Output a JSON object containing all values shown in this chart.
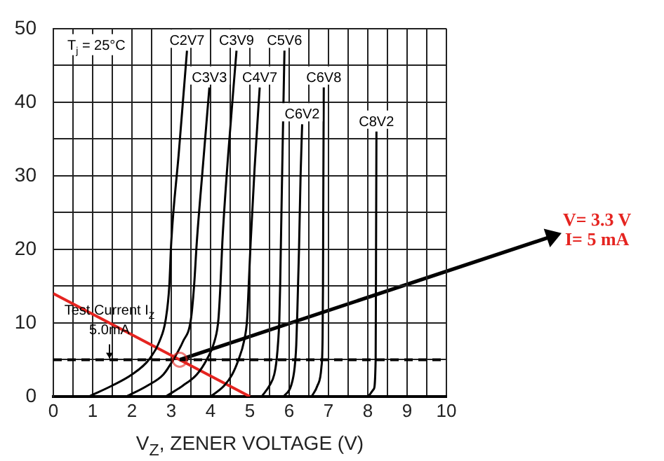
{
  "chart_data": {
    "type": "line",
    "xlabel": "V$_{Z}$, ZENER VOLTAGE (V)",
    "annotations": [
      "T$_{j}$ = 25°C",
      "V= 3.3 V\nI= 5 mA"
    ],
    "xlim": [
      0,
      10
    ],
    "xticks": [
      0,
      {
        "value": 0.5,
        "label": null
      },
      1,
      {
        "value": 1.5,
        "label": null
      },
      2,
      {
        "value": 2.5,
        "label": null
      },
      3,
      {
        "value": 3.5,
        "label": null
      },
      4,
      {
        "value": 4.5,
        "label": null
      },
      5,
      {
        "value": 5.5,
        "label": null
      },
      6,
      {
        "value": 6.5,
        "label": null
      },
      7,
      {
        "value": 7.5,
        "label": null
      },
      8,
      {
        "value": 8.5,
        "label": null
      },
      9,
      {
        "value": 9.5,
        "label": null
      },
      10
    ],
    "ylim": [
      0,
      50
    ],
    "yticks": [
      0,
      {
        "value": 5,
        "label": null
      },
      10,
      {
        "value": 15,
        "label": null
      },
      20,
      {
        "value": 25,
        "label": null
      },
      30,
      {
        "value": 35,
        "label": null
      },
      40,
      {
        "value": 45,
        "label": null
      },
      50
    ],
    "grid": true,
    "legend": false,
    "marker": "none",
    "series": [
      {
        "name": "C2V7",
        "color": "#000000",
        "x": [
          0.9,
          1.5,
          2.0,
          2.43,
          2.7,
          2.86,
          2.95,
          3.0,
          3.19,
          3.4
        ],
        "values": [
          0,
          1.5,
          3,
          5,
          7.5,
          10.5,
          15,
          21,
          33,
          47
        ]
      },
      {
        "name": "C3V3",
        "color": "#000000",
        "x": [
          1.86,
          2.4,
          2.8,
          3.05,
          3.3,
          3.5,
          3.58,
          3.65,
          3.8,
          3.97
        ],
        "values": [
          0,
          1.5,
          3,
          5,
          7.5,
          10.5,
          15,
          21,
          31,
          42
        ]
      },
      {
        "name": "C3V9",
        "color": "#000000",
        "x": [
          2.86,
          3.3,
          3.65,
          3.9,
          4.1,
          4.2,
          4.25,
          4.3,
          4.45,
          4.66
        ],
        "values": [
          0,
          1.5,
          3,
          5,
          7.5,
          10.5,
          15,
          21,
          33,
          47
        ]
      },
      {
        "name": "C4V7",
        "color": "#000000",
        "x": [
          4.0,
          4.35,
          4.55,
          4.71,
          4.85,
          4.93,
          4.97,
          5.02,
          5.12,
          5.25
        ],
        "values": [
          0,
          1.5,
          3,
          5,
          7.5,
          10.5,
          15,
          21,
          31,
          42
        ]
      },
      {
        "name": "C5V6",
        "color": "#000000",
        "x": [
          5.3,
          5.5,
          5.62,
          5.68,
          5.72,
          5.75,
          5.77,
          5.79,
          5.83,
          5.88
        ],
        "values": [
          0,
          1.5,
          3,
          5,
          7.5,
          10.5,
          15,
          21,
          33,
          47
        ]
      },
      {
        "name": "C6V2",
        "color": "#000000",
        "x": [
          5.86,
          6.05,
          6.14,
          6.18,
          6.21,
          6.25,
          6.29,
          6.33
        ],
        "values": [
          0,
          1.5,
          4,
          7,
          12,
          20,
          30,
          37
        ]
      },
      {
        "name": "C6V8",
        "color": "#000000",
        "x": [
          6.57,
          6.72,
          6.82,
          6.85,
          6.86,
          6.87,
          6.88
        ],
        "values": [
          0,
          1.5,
          4,
          8,
          15,
          30,
          42
        ]
      },
      {
        "name": "C8V2",
        "color": "#000000",
        "x": [
          8.0,
          8.15,
          8.2,
          8.21,
          8.22
        ],
        "values": [
          0,
          1,
          5,
          20,
          36
        ]
      },
      {
        "color": "#e52420",
        "x": [
          0,
          5
        ],
        "values": [
          14,
          0
        ]
      }
    ],
    "ref_lines": [
      {
        "axis": "y",
        "value": 5,
        "label": "Test Current I$_{Z}$\n5.0mA",
        "line_style": "dashed",
        "color": "#000000"
      }
    ]
  }
}
